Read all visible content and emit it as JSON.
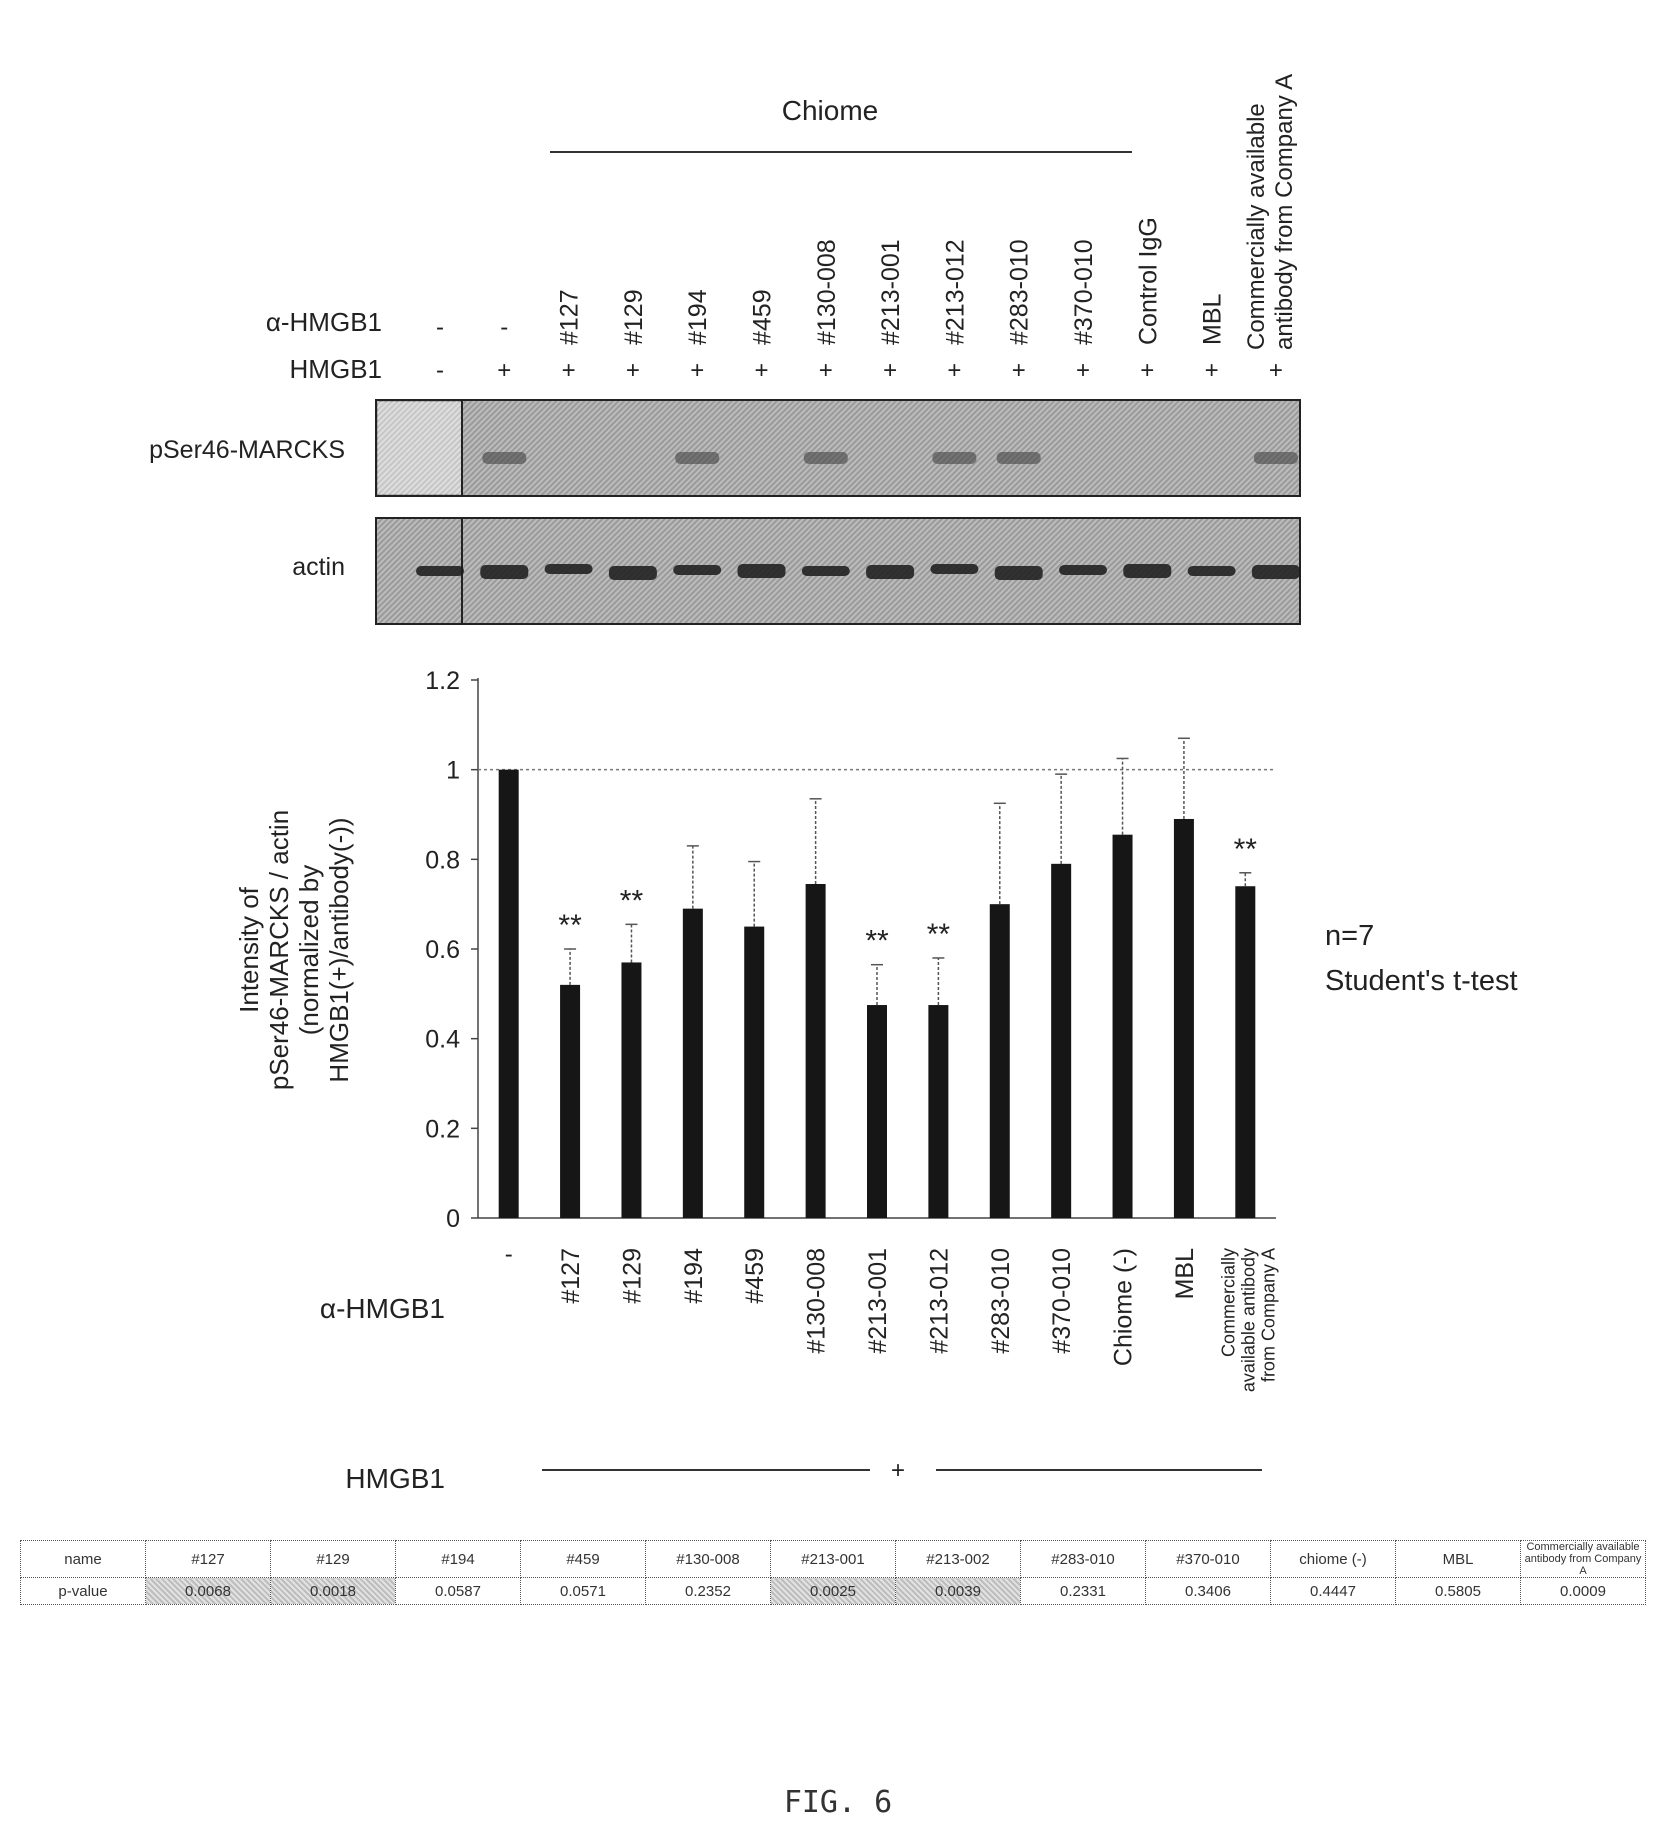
{
  "blot": {
    "group_label": "Chiome",
    "row1_label": "α-HMGB1",
    "row2_label": "HMGB1",
    "lanes": [
      {
        "antibody": "-",
        "hmgb1": "-"
      },
      {
        "antibody": "-",
        "hmgb1": "+"
      },
      {
        "antibody": "#127",
        "hmgb1": "+"
      },
      {
        "antibody": "#129",
        "hmgb1": "+"
      },
      {
        "antibody": "#194",
        "hmgb1": "+"
      },
      {
        "antibody": "#459",
        "hmgb1": "+"
      },
      {
        "antibody": "#130-008",
        "hmgb1": "+"
      },
      {
        "antibody": "#213-001",
        "hmgb1": "+"
      },
      {
        "antibody": "#213-012",
        "hmgb1": "+"
      },
      {
        "antibody": "#283-010",
        "hmgb1": "+"
      },
      {
        "antibody": "#370-010",
        "hmgb1": "+"
      },
      {
        "antibody": "Control IgG",
        "hmgb1": "+"
      },
      {
        "antibody": "MBL",
        "hmgb1": "+"
      },
      {
        "antibody": "Commercially available",
        "antibody2": "antibody from Company A",
        "hmgb1": "+"
      }
    ],
    "panel1_label": "pSer46-MARCKS",
    "panel2_label": "actin"
  },
  "chart_data": {
    "type": "bar",
    "categories": [
      "-",
      "#127",
      "#129",
      "#194",
      "#459",
      "#130-008",
      "#213-001",
      "#213-012",
      "#283-010",
      "#370-010",
      "Chiome (-)",
      "MBL",
      "Commercially available antibody from Company A"
    ],
    "category_lines": [
      [
        "-"
      ],
      [
        "#127"
      ],
      [
        "#129"
      ],
      [
        "#194"
      ],
      [
        "#459"
      ],
      [
        "#130-008"
      ],
      [
        "#213-001"
      ],
      [
        "#213-012"
      ],
      [
        "#283-010"
      ],
      [
        "#370-010"
      ],
      [
        "Chiome (-)"
      ],
      [
        "MBL"
      ],
      [
        "Commercially",
        "available antibody",
        "from Company A"
      ]
    ],
    "values": [
      1.0,
      0.52,
      0.57,
      0.69,
      0.65,
      0.745,
      0.475,
      0.475,
      0.7,
      0.79,
      0.855,
      0.89,
      0.74
    ],
    "errors": [
      0,
      0.08,
      0.085,
      0.14,
      0.145,
      0.19,
      0.09,
      0.105,
      0.225,
      0.2,
      0.17,
      0.18,
      0.03
    ],
    "significance": [
      "",
      "**",
      "**",
      "",
      "",
      "",
      "**",
      "**",
      "",
      "",
      "",
      "",
      "**"
    ],
    "ylabel_lines": [
      "Intensity of",
      "pSer46-MARCKS / actin",
      "(normalized by",
      "HMGB1(+)/antibody(-))"
    ],
    "yticks": [
      "0",
      "0.2",
      "0.4",
      "0.6",
      "0.8",
      "1",
      "1.2"
    ],
    "ylim": [
      0,
      1.2
    ],
    "reference_line": 1,
    "x_row_label": "α-HMGB1",
    "hmgb1_row_label": "HMGB1",
    "hmgb1_sign": "+",
    "stats_note": [
      "n=7",
      "Student's t-test"
    ]
  },
  "ptable": {
    "header": [
      "name",
      "#127",
      "#129",
      "#194",
      "#459",
      "#130-008",
      "#213-001",
      "#213-002",
      "#283-010",
      "#370-010",
      "chiome (-)",
      "MBL",
      "Commercially available antibody from Company A"
    ],
    "row": [
      "p-value",
      "0.0068",
      "0.0018",
      "0.0587",
      "0.0571",
      "0.2352",
      "0.0025",
      "0.0039",
      "0.2331",
      "0.3406",
      "0.4447",
      "0.5805",
      "0.0009"
    ],
    "shaded": [
      false,
      true,
      true,
      false,
      false,
      false,
      true,
      true,
      false,
      false,
      false,
      false,
      false
    ]
  },
  "caption": "FIG. 6"
}
